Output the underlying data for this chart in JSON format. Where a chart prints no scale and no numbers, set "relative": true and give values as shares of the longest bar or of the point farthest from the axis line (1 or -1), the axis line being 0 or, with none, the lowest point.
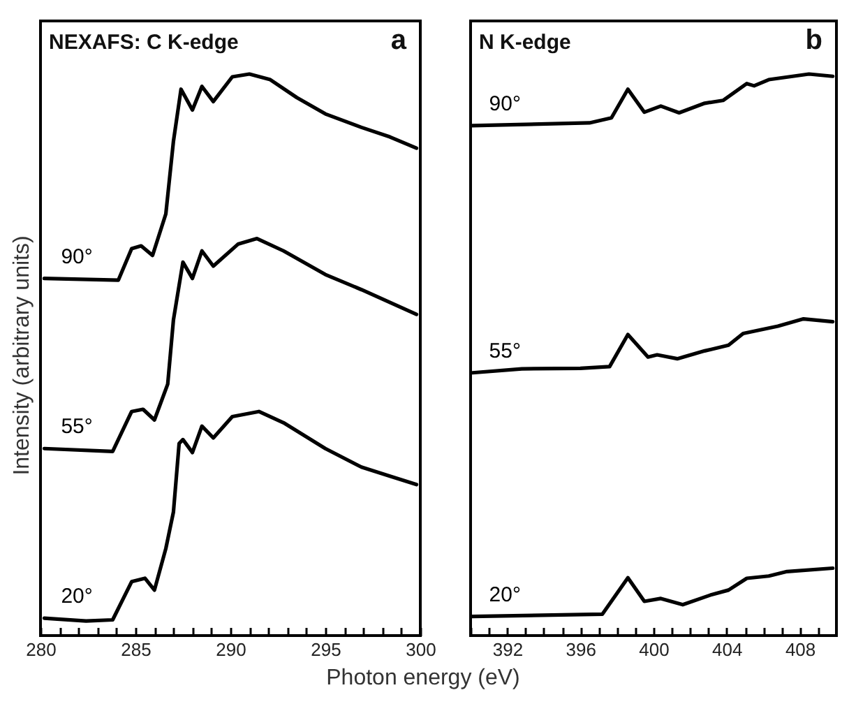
{
  "chart_data": [
    {
      "type": "line",
      "title": "NEXAFS: C K-edge",
      "annotations": [
        "a"
      ],
      "xlabel": "Photon energy (eV)",
      "ylabel": "Intensity (arbitrary units)",
      "relative": true,
      "xlim": [
        280,
        300
      ],
      "xticks": [
        280,
        {
          "value": 281,
          "label": null
        },
        {
          "value": 282,
          "label": null
        },
        {
          "value": 283,
          "label": null
        },
        {
          "value": 284,
          "label": null
        },
        285,
        {
          "value": 286,
          "label": null
        },
        {
          "value": 287,
          "label": null
        },
        {
          "value": 288,
          "label": null
        },
        {
          "value": 289,
          "label": null
        },
        290,
        {
          "value": 291,
          "label": null
        },
        {
          "value": 292,
          "label": null
        },
        {
          "value": 293,
          "label": null
        },
        {
          "value": 294,
          "label": null
        },
        295,
        {
          "value": 296,
          "label": null
        },
        {
          "value": 297,
          "label": null
        },
        {
          "value": 298,
          "label": null
        },
        {
          "value": 299,
          "label": null
        },
        300
      ],
      "series": [
        {
          "name": "90°",
          "color": "#000000",
          "x": [
            280.2,
            284.1,
            284.8,
            285.3,
            285.9,
            286.6,
            287.0,
            287.4,
            288.0,
            288.5,
            289.1,
            290.1,
            291.0,
            292.1,
            293.5,
            295.0,
            296.9,
            298.4,
            299.8
          ],
          "values": [
            0.636,
            0.633,
            0.689,
            0.694,
            0.677,
            0.751,
            0.88,
            0.973,
            0.936,
            0.978,
            0.951,
            0.995,
            1.0,
            0.99,
            0.958,
            0.929,
            0.905,
            0.888,
            0.868
          ]
        },
        {
          "name": "55°",
          "color": "#000000",
          "x": [
            280.2,
            283.8,
            284.8,
            285.4,
            286.0,
            286.7,
            287.0,
            287.5,
            288.0,
            288.5,
            289.1,
            290.4,
            291.4,
            292.8,
            295.0,
            296.9,
            299.8
          ],
          "values": [
            0.333,
            0.328,
            0.399,
            0.403,
            0.384,
            0.448,
            0.562,
            0.665,
            0.636,
            0.685,
            0.658,
            0.697,
            0.707,
            0.685,
            0.643,
            0.616,
            0.572
          ]
        },
        {
          "name": "20°",
          "color": "#000000",
          "x": [
            280.2,
            282.4,
            283.8,
            284.8,
            285.5,
            286.0,
            286.6,
            287.0,
            287.3,
            287.5,
            288.0,
            288.5,
            289.1,
            290.1,
            291.5,
            292.8,
            295.0,
            296.9,
            298.4,
            299.8
          ],
          "values": [
            0.031,
            0.026,
            0.028,
            0.096,
            0.102,
            0.081,
            0.155,
            0.22,
            0.342,
            0.349,
            0.326,
            0.373,
            0.352,
            0.39,
            0.399,
            0.379,
            0.333,
            0.3,
            0.284,
            0.269
          ]
        }
      ]
    },
    {
      "type": "line",
      "title": "N K-edge",
      "annotations": [
        "b"
      ],
      "relative": true,
      "xlim": [
        390,
        410
      ],
      "xticks": [
        {
          "value": 390,
          "label": null
        },
        {
          "value": 391,
          "label": null
        },
        392,
        {
          "value": 393,
          "label": null
        },
        {
          "value": 394,
          "label": null
        },
        {
          "value": 395,
          "label": null
        },
        396,
        {
          "value": 397,
          "label": null
        },
        {
          "value": 398,
          "label": null
        },
        {
          "value": 399,
          "label": null
        },
        400,
        {
          "value": 401,
          "label": null
        },
        {
          "value": 402,
          "label": null
        },
        {
          "value": 403,
          "label": null
        },
        404,
        {
          "value": 405,
          "label": null
        },
        {
          "value": 406,
          "label": null
        },
        {
          "value": 407,
          "label": null
        },
        408,
        {
          "value": 409,
          "label": null
        }
      ],
      "series": [
        {
          "name": "90°",
          "color": "#000000",
          "x": [
            390.1,
            396.5,
            397.7,
            398.6,
            399.5,
            400.4,
            401.4,
            402.8,
            403.8,
            405.1,
            405.5,
            406.3,
            408.5,
            409.8
          ],
          "values": [
            0.908,
            0.913,
            0.922,
            0.973,
            0.932,
            0.943,
            0.931,
            0.948,
            0.953,
            0.983,
            0.979,
            0.99,
            1.0,
            0.996
          ]
        },
        {
          "name": "55°",
          "color": "#000000",
          "x": [
            390.1,
            392.8,
            396.0,
            397.6,
            398.6,
            399.7,
            400.2,
            401.3,
            402.8,
            404.1,
            404.9,
            406.8,
            408.2,
            409.8
          ],
          "values": [
            0.468,
            0.475,
            0.476,
            0.479,
            0.536,
            0.496,
            0.5,
            0.493,
            0.507,
            0.517,
            0.538,
            0.551,
            0.564,
            0.559
          ]
        },
        {
          "name": "20°",
          "color": "#000000",
          "x": [
            390.1,
            397.2,
            398.6,
            399.5,
            400.4,
            401.6,
            403.1,
            404.1,
            405.1,
            406.3,
            407.3,
            409.8
          ],
          "values": [
            0.034,
            0.038,
            0.103,
            0.061,
            0.066,
            0.055,
            0.072,
            0.081,
            0.102,
            0.106,
            0.114,
            0.12
          ]
        }
      ]
    }
  ]
}
